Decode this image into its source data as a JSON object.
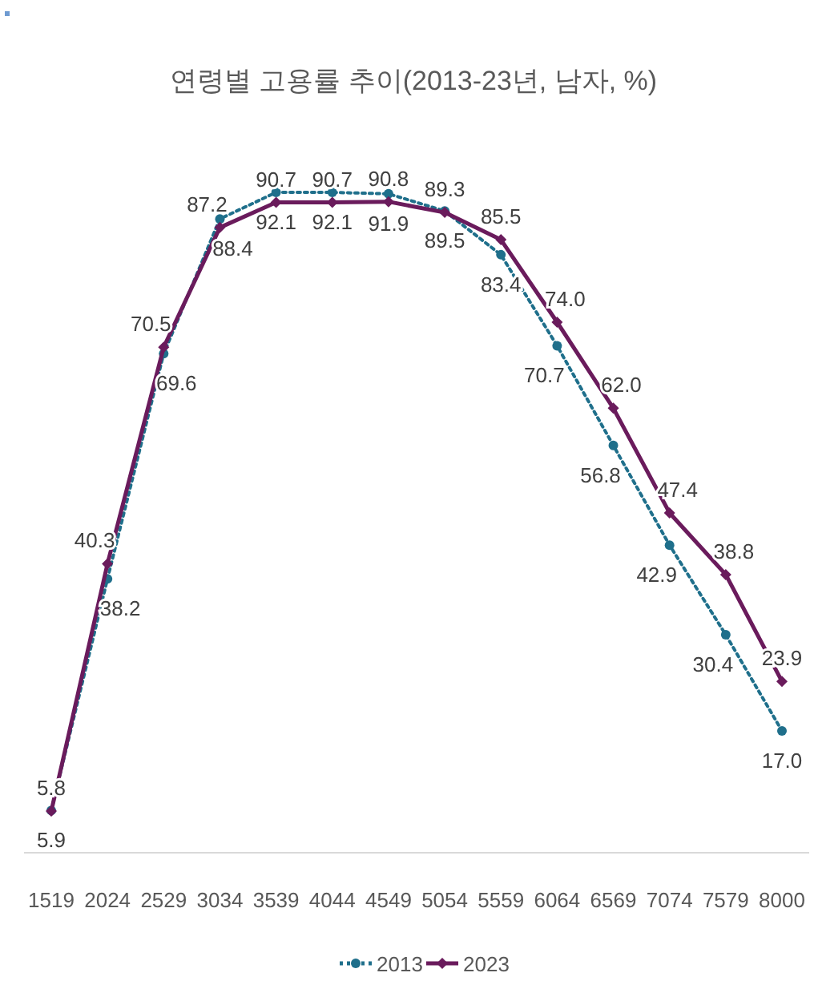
{
  "chart_data": {
    "type": "line",
    "title": "연령별 고용률 추이(2013-23년, 남자, %)",
    "categories": [
      "1519",
      "2024",
      "2529",
      "3034",
      "3539",
      "4044",
      "4549",
      "5054",
      "5559",
      "6064",
      "6569",
      "7074",
      "7579",
      "8000"
    ],
    "series": [
      {
        "name": "2013",
        "color": "#1f6f8b",
        "marker": "circle",
        "line_style": "dotted",
        "values": [
          5.9,
          38.2,
          69.6,
          88.4,
          92.1,
          92.1,
          91.9,
          89.5,
          83.4,
          70.7,
          56.8,
          42.9,
          30.4,
          17.0
        ],
        "value_labels": [
          "5.9",
          "38.2",
          "69.6",
          "88.4",
          "92.1",
          "92.1",
          "91.9",
          "89.5",
          "83.4",
          "70.7",
          "56.8",
          "42.9",
          "30.4",
          "17.0"
        ]
      },
      {
        "name": "2023",
        "color": "#6a1b5c",
        "marker": "diamond",
        "line_style": "solid",
        "values": [
          5.8,
          40.3,
          70.5,
          87.2,
          90.7,
          90.7,
          90.8,
          89.3,
          85.5,
          74.0,
          62.0,
          47.4,
          38.8,
          23.9
        ],
        "value_labels": [
          "5.8",
          "40.3",
          "70.5",
          "87.2",
          "90.7",
          "90.7",
          "90.8",
          "89.3",
          "85.5",
          "74.0",
          "62.0",
          "47.4",
          "38.8",
          "23.9"
        ]
      }
    ],
    "legend": "bottom"
  }
}
